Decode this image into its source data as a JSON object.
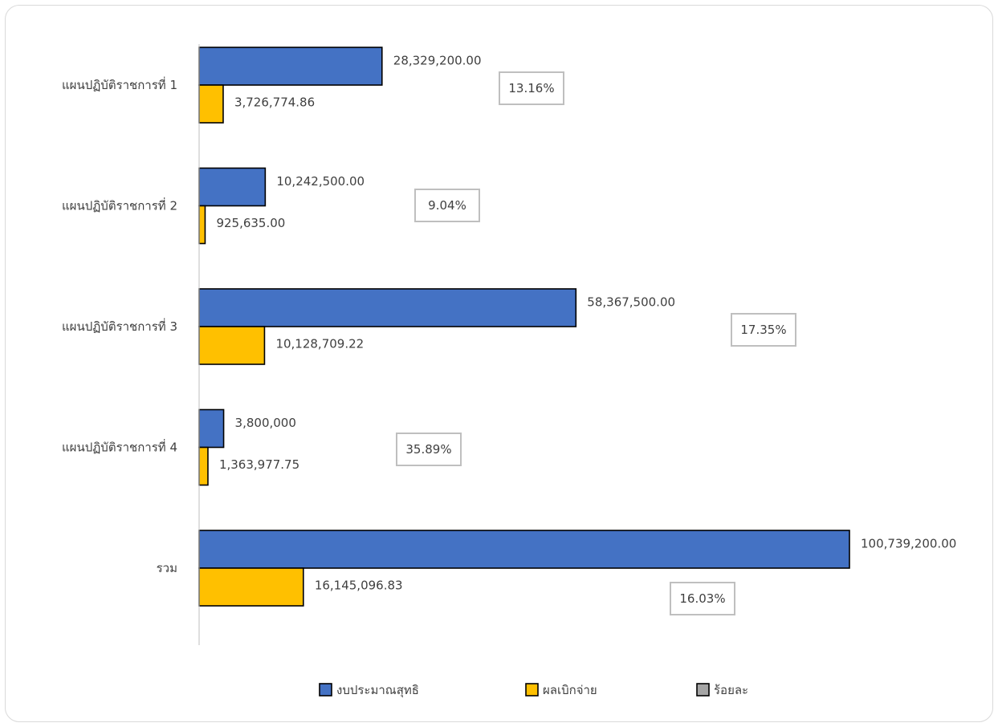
{
  "chart_data": {
    "type": "bar",
    "orientation": "horizontal",
    "title": "",
    "categories": [
      "แผนปฏิบัติราชการที่ 1",
      "แผนปฏิบัติราชการที่ 2",
      "แผนปฏิบัติราชการที่ 3",
      "แผนปฏิบัติราชการที่ 4",
      "รวม"
    ],
    "series": [
      {
        "name": "งบประมาณสุทธิ",
        "color": "#4472c4",
        "values": [
          28329200.0,
          10242500.0,
          58367500.0,
          3800000,
          100739200.0
        ],
        "labels": [
          "28,329,200.00",
          "10,242,500.00",
          "58,367,500.00",
          "3,800,000",
          "100,739,200.00"
        ]
      },
      {
        "name": "ผลเบิกจ่าย",
        "color": "#ffc000",
        "values": [
          3726774.86,
          925635.0,
          10128709.22,
          1363977.75,
          16145096.83
        ],
        "labels": [
          "3,726,774.86",
          "925,635.00",
          "10,128,709.22",
          "1,363,977.75",
          "16,145,096.83"
        ]
      },
      {
        "name": "ร้อยละ",
        "color": "#a5a5a5",
        "values": [
          13.16,
          9.04,
          17.35,
          35.89,
          16.03
        ],
        "labels": [
          "13.16%",
          "9.04%",
          "17.35%",
          "35.89%",
          "16.03%"
        ]
      }
    ],
    "xlim": [
      0,
      100739200
    ],
    "grid": false,
    "legend_position": "bottom"
  }
}
